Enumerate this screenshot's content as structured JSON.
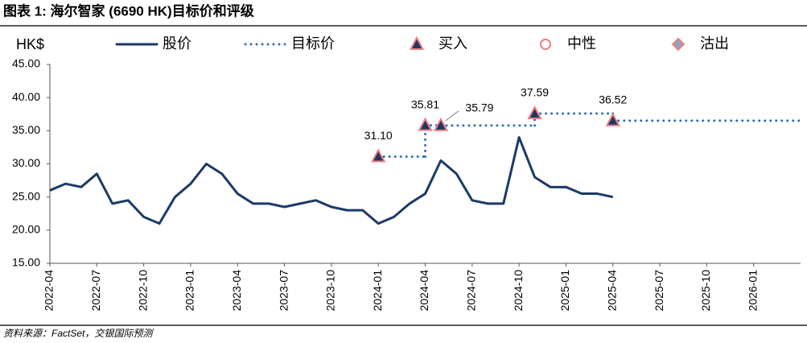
{
  "chart_data": {
    "type": "line",
    "title": "图表 1: 海尔智家 (6690 HK)目标价和评级",
    "y_label": "HK$",
    "source": "资料来源：FactSet，交银国际预测",
    "xlim": [
      "2022-04",
      "2026-04"
    ],
    "xticks": [
      "2022-04",
      "2022-07",
      "2022-10",
      "2023-01",
      "2023-04",
      "2023-07",
      "2023-10",
      "2024-01",
      "2024-04",
      "2024-07",
      "2024-10",
      "2025-01",
      "2025-04",
      "2025-07",
      "2025-10",
      "2026-01"
    ],
    "ylim": [
      15,
      45
    ],
    "yticks": [
      {
        "value": 15,
        "label": "15.00"
      },
      {
        "value": 20,
        "label": "20.00"
      },
      {
        "value": 25,
        "label": "25.00"
      },
      {
        "value": 30,
        "label": "30.00"
      },
      {
        "value": 35,
        "label": "35.00"
      },
      {
        "value": 40,
        "label": "40.00"
      },
      {
        "value": 45,
        "label": "45.00"
      }
    ],
    "series": [
      {
        "name": "股价",
        "color": "#1b3a66",
        "x": [
          "2022-04",
          "2022-05",
          "2022-06",
          "2022-07",
          "2022-08",
          "2022-09",
          "2022-10",
          "2022-11",
          "2022-12",
          "2023-01",
          "2023-02",
          "2023-03",
          "2023-04",
          "2023-05",
          "2023-06",
          "2023-07",
          "2023-08",
          "2023-09",
          "2023-10",
          "2023-11",
          "2023-12",
          "2024-01",
          "2024-02",
          "2024-03",
          "2024-04",
          "2024-05",
          "2024-06",
          "2024-07",
          "2024-08",
          "2024-09",
          "2024-10",
          "2024-11",
          "2024-12",
          "2025-01",
          "2025-02",
          "2025-03",
          "2025-04"
        ],
        "values": [
          26,
          27,
          26.5,
          28.5,
          24,
          24.5,
          22,
          21,
          25,
          27,
          30,
          28.5,
          25.5,
          24,
          24,
          23.5,
          24,
          24.5,
          23.5,
          23,
          23,
          21,
          22,
          24,
          25.5,
          30.5,
          28.5,
          24.5,
          24,
          24,
          34,
          28,
          26.5,
          26.5,
          25.5,
          25.5,
          25
        ]
      },
      {
        "name": "目标价",
        "color": "#2f6db5",
        "step": true,
        "marker": "triangle",
        "x": [
          "2024-01",
          "2024-04",
          "2024-05",
          "2024-11",
          "2025-04"
        ],
        "values": [
          31.1,
          35.81,
          35.79,
          37.59,
          36.52
        ],
        "value_labels": [
          "31.10",
          "35.81",
          "35.79",
          "37.59",
          "36.52"
        ]
      }
    ],
    "ratings": [
      {
        "name": "买入",
        "shape": "triangle",
        "color": "#1f3864"
      },
      {
        "name": "中性",
        "shape": "circle",
        "color": "#ffffff"
      },
      {
        "name": "沽出",
        "shape": "diamond",
        "color": "#8fa3c4"
      }
    ],
    "marker_edge_color": "#f08080"
  }
}
